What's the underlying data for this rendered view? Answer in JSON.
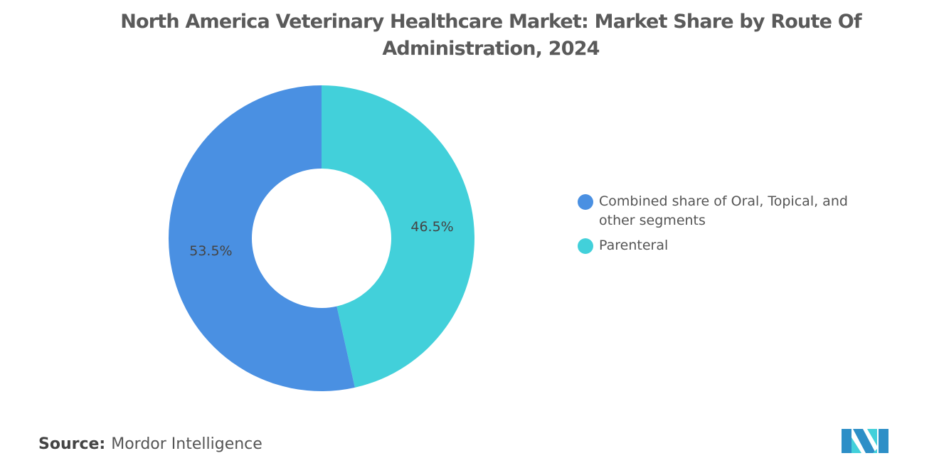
{
  "title": "North America Veterinary Healthcare Market: Market Share by Route Of Administration, 2024",
  "chart_data": {
    "type": "pie",
    "variant": "donut",
    "title": "North America Veterinary Healthcare Market: Market Share by Route Of Administration, 2024",
    "series": [
      {
        "name": "Parenteral",
        "value": 46.5,
        "label": "46.5%",
        "color": "#42d0da"
      },
      {
        "name": "Combined share of Oral, Topical, and other segments",
        "value": 53.5,
        "label": "53.5%",
        "color": "#4a90e2"
      }
    ],
    "legend_position": "right"
  },
  "legend": {
    "items": [
      {
        "label": "Combined share of Oral, Topical, and other segments",
        "color": "#4a90e2"
      },
      {
        "label": "Parenteral",
        "color": "#42d0da"
      }
    ]
  },
  "source": {
    "label": "Source:",
    "value": "Mordor Intelligence"
  },
  "logo": {
    "text": "Mordor Intelligence logo"
  }
}
